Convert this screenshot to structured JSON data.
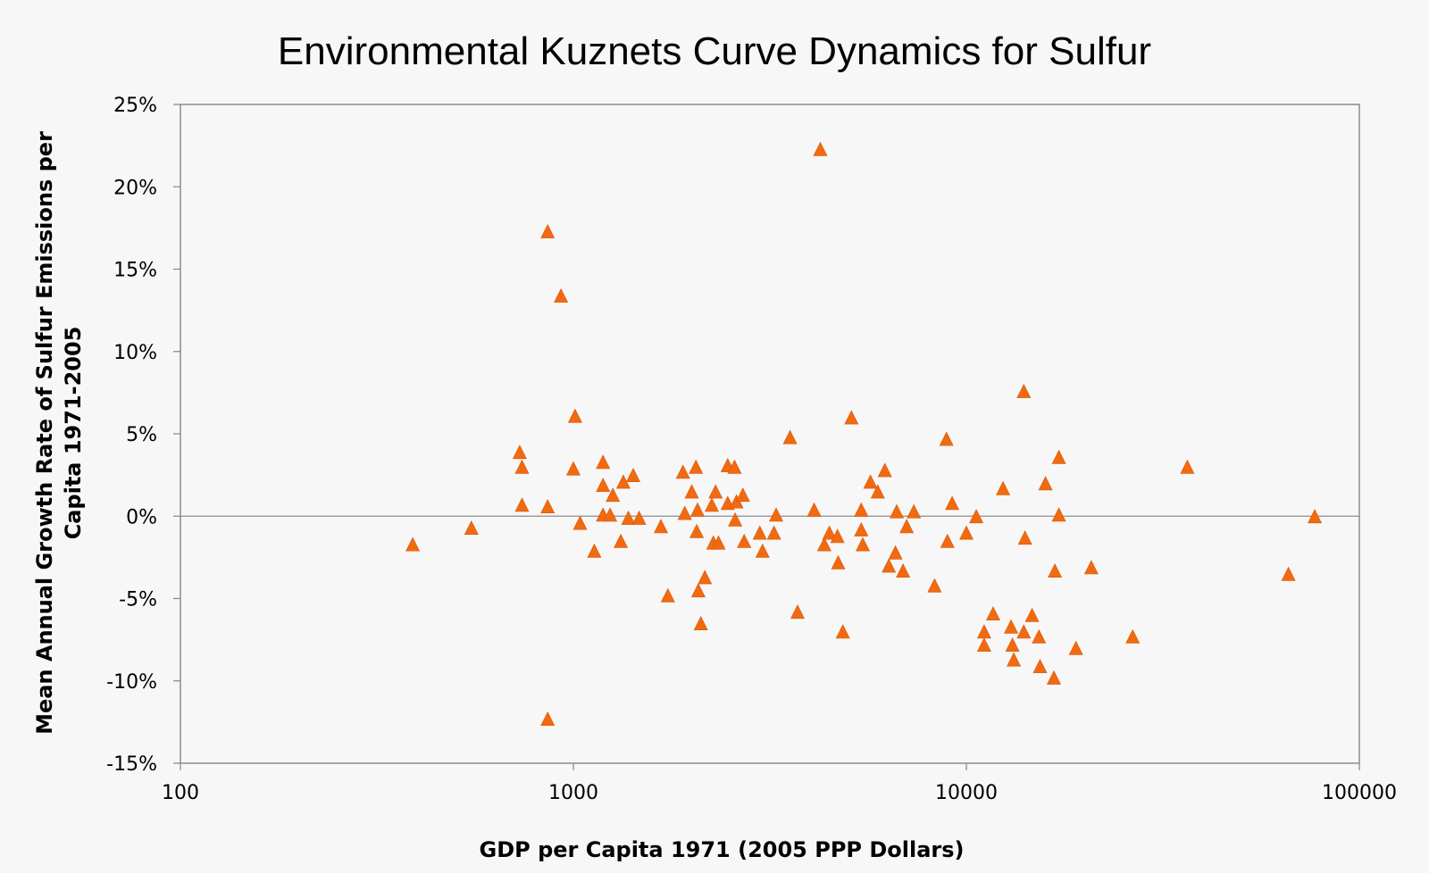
{
  "chart_data": {
    "type": "scatter",
    "title": "Environmental Kuznets Curve Dynamics for Sulfur",
    "xlabel": "GDP per Capita 1971 (2005 PPP Dollars)",
    "ylabel_line1": "Mean Annual Growth Rate of Sulfur Emissions per",
    "ylabel_line2": "Capita 1971-2005",
    "x_scale": "log",
    "xlim": [
      100,
      100000
    ],
    "ylim": [
      -15,
      25
    ],
    "x_ticks": [
      100,
      1000,
      10000,
      100000
    ],
    "x_tick_labels": [
      "100",
      "1000",
      "10000",
      "100000"
    ],
    "y_ticks": [
      -15,
      -10,
      -5,
      0,
      5,
      10,
      15,
      20,
      25
    ],
    "y_tick_labels": [
      "-15%",
      "-10%",
      "-5%",
      "0%",
      "5%",
      "10%",
      "15%",
      "20%",
      "25%"
    ],
    "grid": false,
    "zero_line": true,
    "marker": "triangle",
    "color": "#f26a0f",
    "points": [
      [
        390,
        -1.8
      ],
      [
        550,
        -0.8
      ],
      [
        730,
        3.8
      ],
      [
        740,
        2.9
      ],
      [
        740,
        0.6
      ],
      [
        860,
        0.5
      ],
      [
        860,
        17.2
      ],
      [
        860,
        -12.4
      ],
      [
        930,
        13.3
      ],
      [
        1000,
        2.8
      ],
      [
        1010,
        6.0
      ],
      [
        1040,
        -0.5
      ],
      [
        1130,
        -2.2
      ],
      [
        1190,
        3.2
      ],
      [
        1190,
        1.8
      ],
      [
        1190,
        0.0
      ],
      [
        1240,
        0.0
      ],
      [
        1260,
        1.2
      ],
      [
        1320,
        -1.6
      ],
      [
        1340,
        2.0
      ],
      [
        1380,
        -0.2
      ],
      [
        1420,
        2.4
      ],
      [
        1470,
        -0.2
      ],
      [
        1670,
        -0.7
      ],
      [
        1740,
        -4.9
      ],
      [
        1900,
        2.6
      ],
      [
        1920,
        0.1
      ],
      [
        2000,
        1.4
      ],
      [
        2050,
        2.9
      ],
      [
        2070,
        0.3
      ],
      [
        2060,
        -1.0
      ],
      [
        2080,
        -4.6
      ],
      [
        2110,
        -6.6
      ],
      [
        2160,
        -3.8
      ],
      [
        2250,
        0.6
      ],
      [
        2300,
        1.4
      ],
      [
        2270,
        -1.7
      ],
      [
        2340,
        -1.7
      ],
      [
        2470,
        3.0
      ],
      [
        2470,
        0.7
      ],
      [
        2570,
        2.9
      ],
      [
        2580,
        -0.3
      ],
      [
        2600,
        0.8
      ],
      [
        2700,
        1.2
      ],
      [
        2720,
        -1.6
      ],
      [
        2980,
        -1.1
      ],
      [
        3030,
        -2.2
      ],
      [
        3240,
        -1.1
      ],
      [
        3280,
        -0.0
      ],
      [
        3560,
        4.7
      ],
      [
        3720,
        -5.9
      ],
      [
        4100,
        0.3
      ],
      [
        4250,
        22.2
      ],
      [
        4350,
        -1.8
      ],
      [
        4480,
        -1.1
      ],
      [
        4700,
        -1.3
      ],
      [
        4720,
        -2.9
      ],
      [
        4850,
        -7.1
      ],
      [
        5100,
        5.9
      ],
      [
        5400,
        0.3
      ],
      [
        5400,
        -0.9
      ],
      [
        5450,
        -1.8
      ],
      [
        5700,
        2.0
      ],
      [
        5950,
        1.4
      ],
      [
        6200,
        2.7
      ],
      [
        6350,
        -3.1
      ],
      [
        6600,
        -2.3
      ],
      [
        6650,
        0.2
      ],
      [
        6900,
        -3.4
      ],
      [
        7050,
        -0.7
      ],
      [
        7350,
        0.2
      ],
      [
        8300,
        -4.3
      ],
      [
        8900,
        4.6
      ],
      [
        8950,
        -1.6
      ],
      [
        9200,
        0.7
      ],
      [
        10000,
        -1.1
      ],
      [
        10600,
        -0.1
      ],
      [
        11100,
        -7.1
      ],
      [
        11100,
        -7.9
      ],
      [
        11700,
        -6.0
      ],
      [
        12400,
        1.6
      ],
      [
        13000,
        -6.8
      ],
      [
        13100,
        -7.9
      ],
      [
        13200,
        -8.8
      ],
      [
        14000,
        7.5
      ],
      [
        14000,
        -7.1
      ],
      [
        14100,
        -1.4
      ],
      [
        14700,
        -6.1
      ],
      [
        15300,
        -7.4
      ],
      [
        15400,
        -9.2
      ],
      [
        15900,
        1.9
      ],
      [
        16700,
        -9.9
      ],
      [
        16800,
        -3.4
      ],
      [
        17200,
        3.5
      ],
      [
        17200,
        0.0
      ],
      [
        19000,
        -8.1
      ],
      [
        20800,
        -3.2
      ],
      [
        26500,
        -7.4
      ],
      [
        36500,
        2.9
      ],
      [
        66000,
        -3.6
      ],
      [
        77000,
        -0.1
      ]
    ]
  }
}
